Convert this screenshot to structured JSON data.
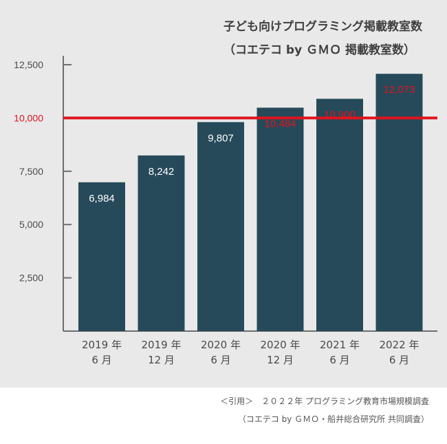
{
  "chart_data": {
    "type": "bar",
    "title": "子ども向けプログラミング掲載教室数",
    "subtitle": "（コエテコ by ＧＭＯ 掲載教室数）",
    "categories": [
      [
        "2019 年",
        "6 月"
      ],
      [
        "2019 年",
        "12 月"
      ],
      [
        "2020 年",
        "6 月"
      ],
      [
        "2020 年",
        "12 月"
      ],
      [
        "2021 年",
        "6 月"
      ],
      [
        "2022 年",
        "6 月"
      ]
    ],
    "values": [
      6984,
      8242,
      9807,
      10484,
      10900,
      12073
    ],
    "value_labels": [
      "6,984",
      "8,242",
      "9,807",
      "10,484",
      "10,900",
      "12,073"
    ],
    "yticks": [
      2500,
      5000,
      7500,
      10000,
      12500
    ],
    "ytick_labels": [
      "2,500",
      "5,000",
      "7,500",
      "10,000",
      "12,500"
    ],
    "ylim": [
      0,
      12500
    ],
    "reference_line": {
      "value": 10000,
      "color": "#e0141e"
    },
    "bar_color": "#264a5a",
    "label_color_above_ref": "#e0141e",
    "label_color_below_ref": "#ffffff",
    "grid": false
  },
  "footer": {
    "line1": "＜引用＞　２０２２年 プログラミング教育市場規模調査",
    "line2": "（コエテコ by ＧＭＯ・船井総合研究所 共同調査）"
  }
}
